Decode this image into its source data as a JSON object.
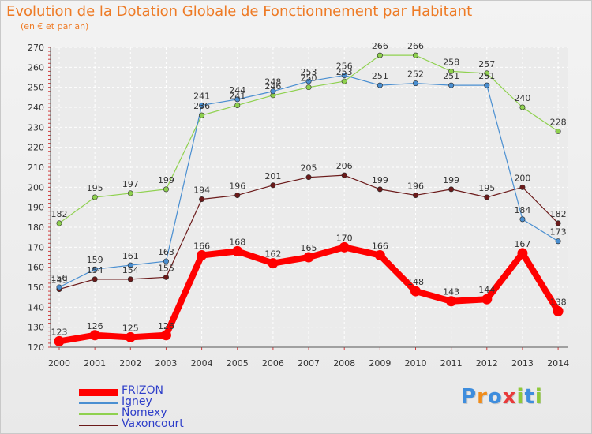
{
  "title": "Evolution de la Dotation Globale de Fonctionnement par Habitant",
  "subtitle": "(en € et par an)",
  "logo": {
    "text": "Proxiti",
    "letters": [
      "P",
      "r",
      "o",
      "x",
      "i",
      "t",
      "i"
    ]
  },
  "chart_data": {
    "type": "line",
    "title": "Evolution de la Dotation Globale de Fonctionnement par Habitant",
    "ylabel": "(en € et par an)",
    "xlabel": "",
    "ylim": [
      120,
      270
    ],
    "yticks": [
      "120",
      "130",
      "140",
      "150",
      "160",
      "170",
      "180",
      "190",
      "200",
      "210",
      "220",
      "230",
      "240",
      "250",
      "260",
      "270"
    ],
    "categories": [
      "2000",
      "2001",
      "2002",
      "2003",
      "2004",
      "2005",
      "2006",
      "2007",
      "2008",
      "2009",
      "2010",
      "2011",
      "2012",
      "2013",
      "2014"
    ],
    "grid": true,
    "legend_position": "bottom-left",
    "series": [
      {
        "name": "Vaxoncourt",
        "color": "#6b1a1a",
        "values": [
          149,
          154,
          154,
          155,
          194,
          196,
          201,
          205,
          206,
          199,
          196,
          199,
          195,
          200,
          182
        ]
      },
      {
        "name": "Nomexy",
        "color": "#8fd14f",
        "values": [
          182,
          195,
          197,
          199,
          236,
          241,
          246,
          250,
          253,
          266,
          266,
          258,
          257,
          240,
          228
        ]
      },
      {
        "name": "Igney",
        "color": "#4a8fd1",
        "values": [
          150,
          159,
          161,
          163,
          241,
          244,
          248,
          253,
          256,
          251,
          252,
          251,
          251,
          184,
          173
        ]
      },
      {
        "name": "FRIZON",
        "color": "#ff0000",
        "values": [
          123,
          126,
          125,
          126,
          166,
          168,
          162,
          165,
          170,
          166,
          148,
          143,
          144,
          167,
          138
        ]
      }
    ]
  },
  "legend": [
    {
      "name": "FRIZON",
      "color": "#ff0000",
      "style": "thick"
    },
    {
      "name": "Igney",
      "color": "#4a8fd1",
      "style": "thin"
    },
    {
      "name": "Nomexy",
      "color": "#8fd14f",
      "style": "thin"
    },
    {
      "name": "Vaxoncourt",
      "color": "#6b1a1a",
      "style": "thin"
    }
  ]
}
